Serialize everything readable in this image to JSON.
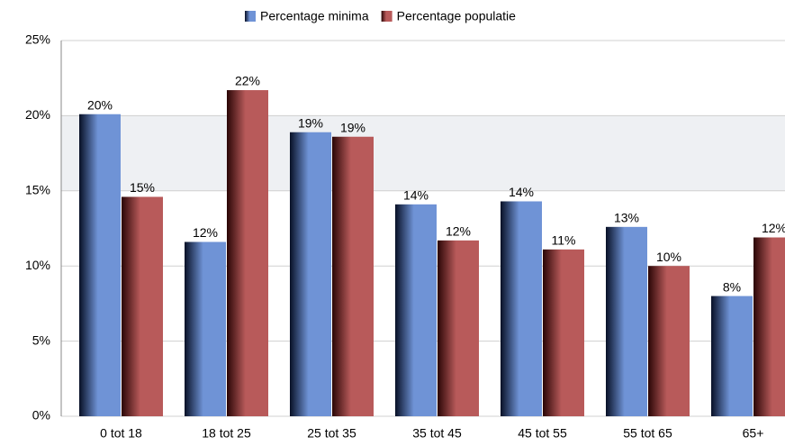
{
  "chart_data": {
    "type": "bar",
    "categories": [
      "0 tot 18",
      "18 tot 25",
      "25 tot 35",
      "35 tot 45",
      "45 tot 55",
      "55 tot 65",
      "65+"
    ],
    "series": [
      {
        "name": "Percentage minima",
        "color": "#6f93d6",
        "values": [
          20.1,
          11.6,
          18.9,
          14.1,
          14.3,
          12.6,
          8.0
        ],
        "value_labels": [
          "20%",
          "12%",
          "19%",
          "14%",
          "14%",
          "13%",
          "8%"
        ]
      },
      {
        "name": "Percentage populatie",
        "color": "#b85a5a",
        "values": [
          14.6,
          21.7,
          18.6,
          11.7,
          11.1,
          10.0,
          11.9
        ],
        "value_labels": [
          "15%",
          "22%",
          "19%",
          "12%",
          "11%",
          "10%",
          "12%"
        ]
      }
    ],
    "ylim": [
      0,
      25
    ],
    "yticks": [
      {
        "value": 0,
        "label": "0%"
      },
      {
        "value": 5,
        "label": "5%"
      },
      {
        "value": 10,
        "label": "10%"
      },
      {
        "value": 15,
        "label": "15%"
      },
      {
        "value": 20,
        "label": "20%"
      },
      {
        "value": 25,
        "label": "25%"
      }
    ],
    "grid": true,
    "legend": "top"
  }
}
